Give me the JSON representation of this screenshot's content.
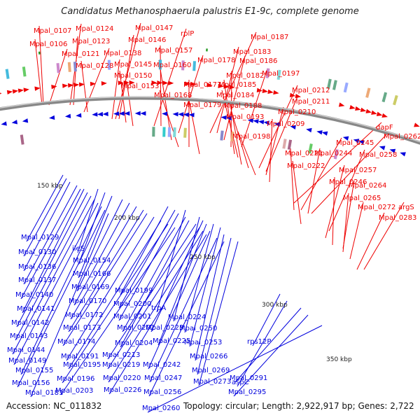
{
  "title": "Candidatus Methanosphaerula palustris E1-9c, complete genome",
  "accession": "Accession: NC_011832",
  "summary": "Topology: circular; Length: 2,922,917 bp; Genes: 2,722",
  "colors": {
    "forward": "#ee0000",
    "reverse": "#0000dd",
    "backbone": "#888888",
    "marker": "#229922"
  },
  "kbp_labels": [
    "150 kbp",
    "200 kbp",
    "250 kbp",
    "300 kbp",
    "350 kbp"
  ],
  "top_labels": [
    "Mpal_0107",
    "Mpal_0124",
    "Mpal_0147",
    "rplP",
    "Mpal_0187",
    "Mpal_0106",
    "Mpal_0123",
    "Mpal_0146",
    "Mpal_0157",
    "Mpal_0183",
    "Mpal_0121",
    "Mpal_0138",
    "Mpal_0178",
    "Mpal_0186",
    "Mpal_0128",
    "Mpal_0145",
    "Mpal_0160",
    "Mpal_0182",
    "Mpal_0197",
    "Mpal_0150",
    "Mpal_0177",
    "Mpal_0185",
    "Mpal_0153",
    "Mpal_0184",
    "Mpal_0212",
    "Mpal_0168",
    "Mpal_0211",
    "Mpal_0179",
    "Mpal_0188",
    "Mpal_0210",
    "Mpal_0193",
    "Mpal_0209",
    "Mpal_0198",
    "dapF",
    "Mpal_0245",
    "Mpal_0262",
    "Mpal_0221",
    "Mpal_0244",
    "Mpal_0258",
    "Mpal_0222",
    "Mpal_0257",
    "Mpal_0246",
    "Mpal_0264",
    "Mpal_0265",
    "Mpal_0272",
    "argS",
    "Mpal_0283"
  ],
  "bottom_labels": [
    "Mpal_0129",
    "Mpal_0130",
    "ileS",
    "Mpal_0154",
    "Mpal_0136",
    "Mpal_0166",
    "Mpal_0137",
    "Mpal_0169",
    "Mpal_0199",
    "Mpal_0140",
    "Mpal_0170",
    "Mpal_0200",
    "trpA",
    "Mpal_0141",
    "Mpal_0172",
    "Mpal_0201",
    "Mpal_0224",
    "Mpal_0142",
    "Mpal_0173",
    "Mpal_0202",
    "Mpal_0223",
    "Mpal_0250",
    "Mpal_0143",
    "Mpal_0174",
    "Mpal_0204",
    "Mpal_0225",
    "Mpal_0253",
    "Mpal_0144",
    "Mpal_0191",
    "Mpal_0213",
    "rps12P",
    "Mpal_0149",
    "Mpal_0195",
    "Mpal_0219",
    "Mpal_0242",
    "Mpal_0266",
    "Mpal_0155",
    "Mpal_0196",
    "Mpal_0220",
    "Mpal_0269",
    "aspC",
    "Mpal_0156",
    "Mpal_0203",
    "Mpal_0226",
    "Mpal_0247",
    "Mpal_0273",
    "Mpal_0291",
    "Mpal_0181",
    "Mpal_0256",
    "Mpal_0295",
    "Mpal_0260"
  ]
}
